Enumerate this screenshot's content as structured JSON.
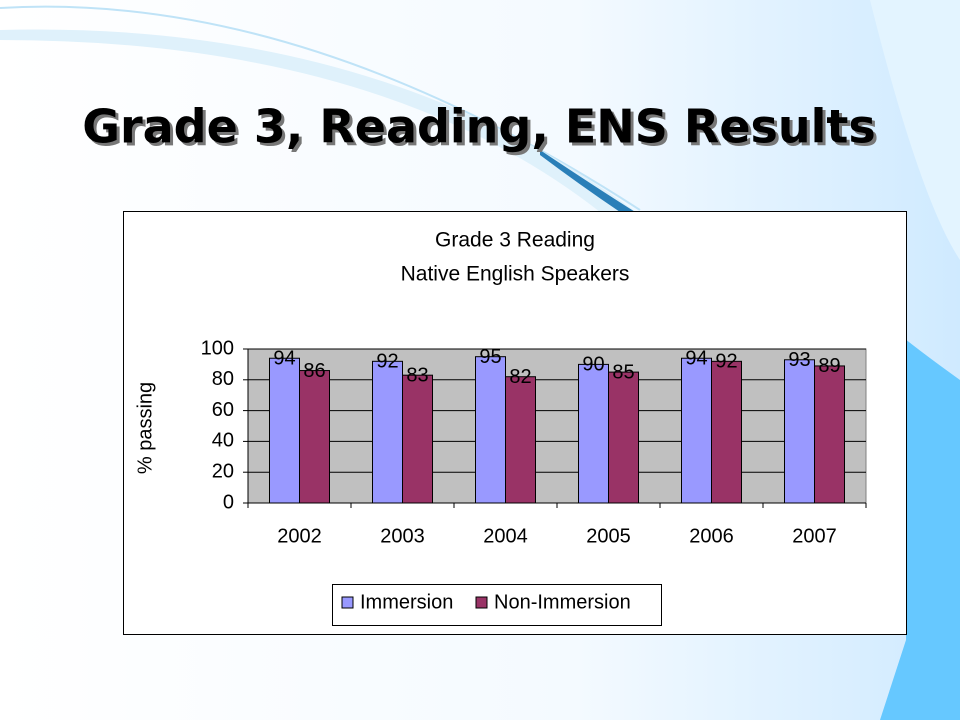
{
  "slide_title": "Grade 3, Reading, ENS Results",
  "chart_data": {
    "type": "bar",
    "title": "Grade 3 Reading",
    "subtitle": "Native English Speakers",
    "y_label": "% passing",
    "categories": [
      "2002",
      "2003",
      "2004",
      "2005",
      "2006",
      "2007"
    ],
    "series": [
      {
        "name": "Immersion",
        "color": "#9999ff",
        "values": [
          94,
          92,
          95,
          90,
          94,
          93
        ]
      },
      {
        "name": "Non-Immersion",
        "color": "#993366",
        "values": [
          86,
          83,
          82,
          85,
          92,
          89
        ]
      }
    ],
    "ylim": [
      0,
      100
    ],
    "yticks": [
      0,
      20,
      40,
      60,
      80,
      100
    ],
    "grid": true,
    "legend": "bottom",
    "plot_background": "#c0c0c0"
  }
}
